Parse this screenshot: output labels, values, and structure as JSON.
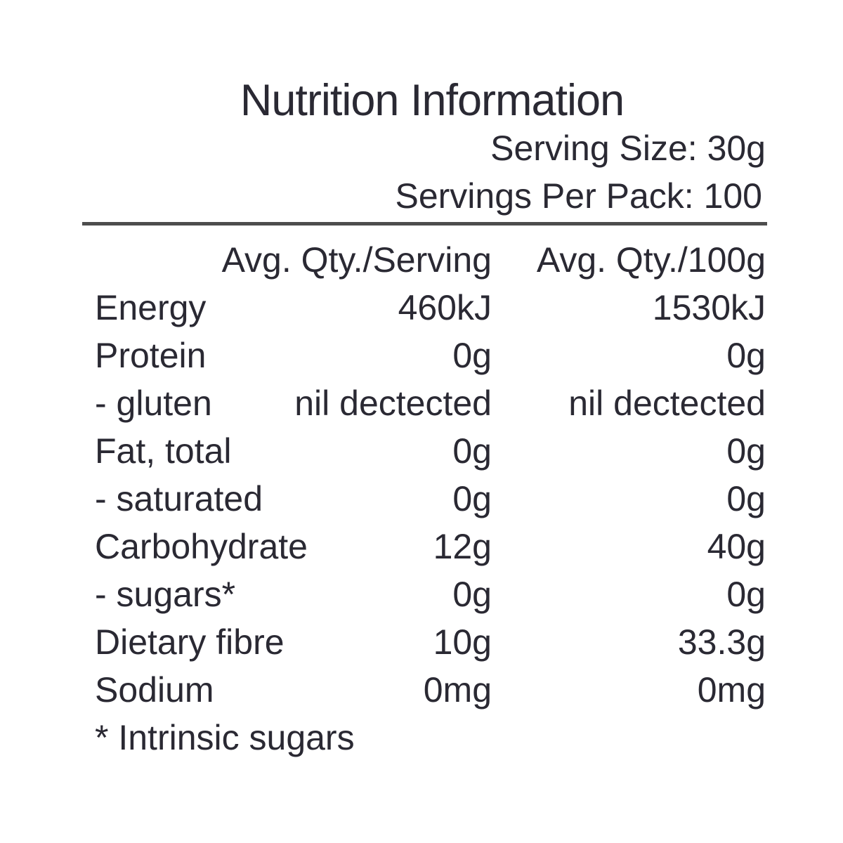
{
  "label": {
    "title": "Nutrition Information",
    "serving_size": "Serving Size: 30g",
    "servings_per_pack": "Servings Per Pack: 100",
    "columns": {
      "per_serving": "Avg. Qty./Serving",
      "per_100g": "Avg. Qty./100g"
    },
    "rows": [
      {
        "nutrient": "Energy",
        "per_serving": "460kJ",
        "per_100g": "1530kJ"
      },
      {
        "nutrient": "Protein",
        "per_serving": "0g",
        "per_100g": "0g"
      },
      {
        "nutrient": "- gluten",
        "per_serving": "nil dectected",
        "per_100g": "nil dectected"
      },
      {
        "nutrient": "Fat, total",
        "per_serving": "0g",
        "per_100g": "0g"
      },
      {
        "nutrient": "- saturated",
        "per_serving": "0g",
        "per_100g": "0g"
      },
      {
        "nutrient": "Carbohydrate",
        "per_serving": "12g",
        "per_100g": "40g"
      },
      {
        "nutrient": "- sugars*",
        "per_serving": "0g",
        "per_100g": "0g"
      },
      {
        "nutrient": "Dietary fibre",
        "per_serving": "10g",
        "per_100g": "33.3g"
      },
      {
        "nutrient": "Sodium",
        "per_serving": "0mg",
        "per_100g": "0mg"
      }
    ],
    "footnote": "* Intrinsic sugars"
  },
  "colors": {
    "text": "#2a2933",
    "rule": "#4d4d4d",
    "background": "#ffffff"
  }
}
